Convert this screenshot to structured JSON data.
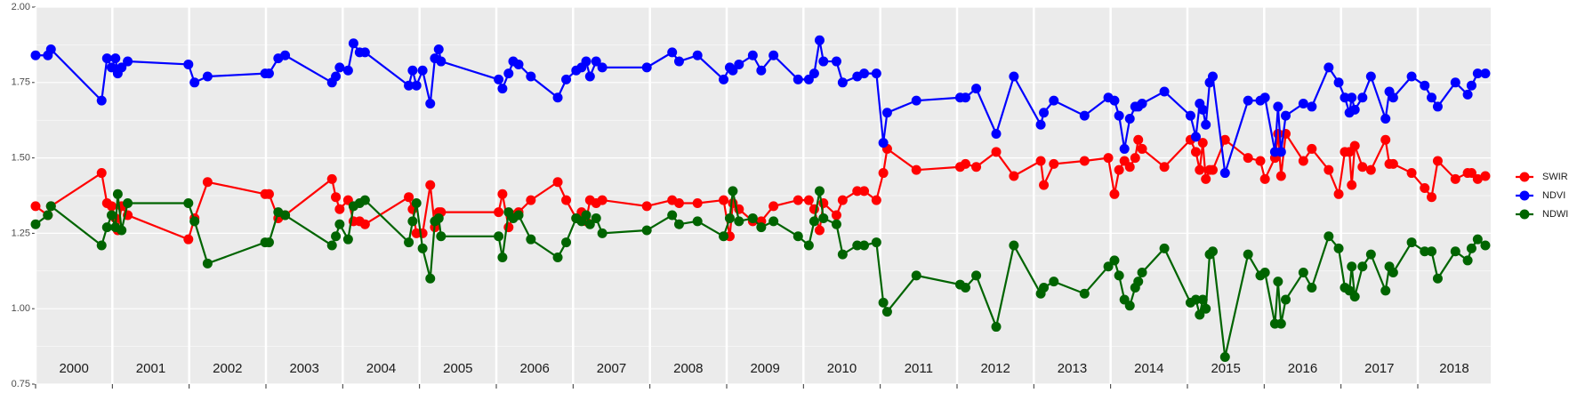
{
  "chart_data": {
    "type": "line",
    "x": [
      2000.0,
      2000.16,
      2000.2,
      2000.86,
      2000.93,
      2000.99,
      2001.04,
      2001.07,
      2001.12,
      2001.2,
      2001.99,
      2002.07,
      2002.24,
      2002.99,
      2003.04,
      2003.16,
      2003.25,
      2003.86,
      2003.91,
      2003.96,
      2004.07,
      2004.14,
      2004.22,
      2004.29,
      2004.86,
      2004.91,
      2004.96,
      2005.04,
      2005.14,
      2005.2,
      2005.25,
      2005.28,
      2006.03,
      2006.08,
      2006.16,
      2006.22,
      2006.29,
      2006.45,
      2006.8,
      2006.91,
      2007.04,
      2007.11,
      2007.17,
      2007.22,
      2007.3,
      2007.38,
      2007.96,
      2008.29,
      2008.38,
      2008.62,
      2008.96,
      2009.04,
      2009.08,
      2009.16,
      2009.34,
      2009.45,
      2009.61,
      2009.93,
      2010.07,
      2010.14,
      2010.21,
      2010.26,
      2010.43,
      2010.51,
      2010.7,
      2010.79,
      2010.95,
      2011.04,
      2011.09,
      2011.47,
      2012.04,
      2012.11,
      2012.25,
      2012.51,
      2012.74,
      2013.09,
      2013.13,
      2013.26,
      2013.66,
      2013.97,
      2014.05,
      2014.11,
      2014.18,
      2014.25,
      2014.32,
      2014.36,
      2014.41,
      2014.7,
      2015.04,
      2015.11,
      2015.16,
      2015.2,
      2015.24,
      2015.29,
      2015.33,
      2015.49,
      2015.79,
      2015.95,
      2016.01,
      2016.14,
      2016.18,
      2016.22,
      2016.28,
      2016.51,
      2016.62,
      2016.84,
      2016.97,
      2017.05,
      2017.11,
      2017.14,
      2017.18,
      2017.28,
      2017.39,
      2017.58,
      2017.63,
      2017.68,
      2017.92,
      2018.09,
      2018.18,
      2018.26,
      2018.49,
      2018.65,
      2018.7,
      2018.78,
      2018.88
    ],
    "series": [
      {
        "name": "SWIR",
        "color": "#ff0000",
        "values": [
          1.34,
          1.31,
          1.34,
          1.45,
          1.35,
          1.34,
          1.3,
          1.26,
          1.34,
          1.31,
          1.23,
          1.3,
          1.42,
          1.38,
          1.38,
          1.3,
          1.31,
          1.43,
          1.37,
          1.33,
          1.36,
          1.29,
          1.29,
          1.28,
          1.37,
          1.33,
          1.25,
          1.25,
          1.41,
          1.27,
          1.32,
          1.32,
          1.32,
          1.38,
          1.27,
          1.31,
          1.32,
          1.36,
          1.42,
          1.36,
          1.3,
          1.32,
          1.29,
          1.36,
          1.35,
          1.36,
          1.34,
          1.36,
          1.35,
          1.35,
          1.36,
          1.24,
          1.35,
          1.33,
          1.29,
          1.29,
          1.34,
          1.36,
          1.36,
          1.33,
          1.26,
          1.35,
          1.31,
          1.36,
          1.39,
          1.39,
          1.36,
          1.45,
          1.53,
          1.46,
          1.47,
          1.48,
          1.47,
          1.52,
          1.44,
          1.49,
          1.41,
          1.48,
          1.49,
          1.5,
          1.38,
          1.46,
          1.49,
          1.47,
          1.5,
          1.56,
          1.53,
          1.47,
          1.56,
          1.52,
          1.46,
          1.55,
          1.43,
          1.46,
          1.46,
          1.56,
          1.5,
          1.49,
          1.43,
          1.5,
          1.58,
          1.44,
          1.58,
          1.49,
          1.53,
          1.46,
          1.38,
          1.52,
          1.52,
          1.41,
          1.54,
          1.47,
          1.46,
          1.56,
          1.48,
          1.48,
          1.45,
          1.4,
          1.37,
          1.49,
          1.43,
          1.45,
          1.45,
          1.43,
          1.44
        ]
      },
      {
        "name": "NDVI",
        "color": "#0000ff",
        "values": [
          1.84,
          1.84,
          1.86,
          1.69,
          1.83,
          1.8,
          1.83,
          1.78,
          1.8,
          1.82,
          1.81,
          1.75,
          1.77,
          1.78,
          1.78,
          1.83,
          1.84,
          1.75,
          1.77,
          1.8,
          1.79,
          1.88,
          1.85,
          1.85,
          1.74,
          1.79,
          1.74,
          1.79,
          1.68,
          1.83,
          1.86,
          1.82,
          1.76,
          1.73,
          1.78,
          1.82,
          1.81,
          1.77,
          1.7,
          1.76,
          1.79,
          1.8,
          1.82,
          1.77,
          1.82,
          1.8,
          1.8,
          1.85,
          1.82,
          1.84,
          1.76,
          1.8,
          1.79,
          1.81,
          1.84,
          1.79,
          1.84,
          1.76,
          1.76,
          1.78,
          1.89,
          1.82,
          1.82,
          1.75,
          1.77,
          1.78,
          1.78,
          1.55,
          1.65,
          1.69,
          1.7,
          1.7,
          1.73,
          1.58,
          1.77,
          1.61,
          1.65,
          1.69,
          1.64,
          1.7,
          1.69,
          1.64,
          1.53,
          1.63,
          1.67,
          1.67,
          1.68,
          1.72,
          1.64,
          1.57,
          1.68,
          1.66,
          1.61,
          1.75,
          1.77,
          1.45,
          1.69,
          1.69,
          1.7,
          1.52,
          1.67,
          1.52,
          1.64,
          1.68,
          1.67,
          1.8,
          1.75,
          1.7,
          1.65,
          1.7,
          1.66,
          1.7,
          1.77,
          1.63,
          1.72,
          1.7,
          1.77,
          1.74,
          1.7,
          1.67,
          1.75,
          1.71,
          1.74,
          1.78,
          1.78
        ]
      },
      {
        "name": "NDWI",
        "color": "#006400",
        "values": [
          1.28,
          1.31,
          1.34,
          1.21,
          1.27,
          1.31,
          1.27,
          1.38,
          1.26,
          1.35,
          1.35,
          1.29,
          1.15,
          1.22,
          1.22,
          1.32,
          1.31,
          1.21,
          1.24,
          1.28,
          1.23,
          1.34,
          1.35,
          1.36,
          1.22,
          1.29,
          1.35,
          1.2,
          1.1,
          1.29,
          1.3,
          1.24,
          1.24,
          1.17,
          1.32,
          1.3,
          1.31,
          1.23,
          1.17,
          1.22,
          1.3,
          1.29,
          1.31,
          1.28,
          1.3,
          1.25,
          1.26,
          1.31,
          1.28,
          1.29,
          1.24,
          1.3,
          1.39,
          1.29,
          1.3,
          1.27,
          1.29,
          1.24,
          1.21,
          1.29,
          1.39,
          1.3,
          1.28,
          1.18,
          1.21,
          1.21,
          1.22,
          1.02,
          0.99,
          1.11,
          1.08,
          1.07,
          1.11,
          0.94,
          1.21,
          1.05,
          1.07,
          1.09,
          1.05,
          1.14,
          1.16,
          1.11,
          1.03,
          1.01,
          1.07,
          1.09,
          1.12,
          1.2,
          1.02,
          1.03,
          0.98,
          1.03,
          1.0,
          1.18,
          1.19,
          0.84,
          1.18,
          1.11,
          1.12,
          0.95,
          1.09,
          0.95,
          1.03,
          1.12,
          1.07,
          1.24,
          1.2,
          1.07,
          1.06,
          1.14,
          1.04,
          1.14,
          1.18,
          1.06,
          1.14,
          1.12,
          1.22,
          1.19,
          1.19,
          1.1,
          1.19,
          1.16,
          1.2,
          1.23,
          1.21
        ]
      }
    ],
    "xlim": [
      2000,
      2018.95
    ],
    "ylim": [
      0.75,
      2.0
    ],
    "xticks": [
      {
        "value": 2000,
        "label": "2000"
      },
      {
        "value": 2001,
        "label": "2001"
      },
      {
        "value": 2002,
        "label": "2002"
      },
      {
        "value": 2003,
        "label": "2003"
      },
      {
        "value": 2004,
        "label": "2004"
      },
      {
        "value": 2005,
        "label": "2005"
      },
      {
        "value": 2006,
        "label": "2006"
      },
      {
        "value": 2007,
        "label": "2007"
      },
      {
        "value": 2008,
        "label": "2008"
      },
      {
        "value": 2009,
        "label": "2009"
      },
      {
        "value": 2010,
        "label": "2010"
      },
      {
        "value": 2011,
        "label": "2011"
      },
      {
        "value": 2012,
        "label": "2012"
      },
      {
        "value": 2013,
        "label": "2013"
      },
      {
        "value": 2014,
        "label": "2014"
      },
      {
        "value": 2015,
        "label": "2015"
      },
      {
        "value": 2016,
        "label": "2016"
      },
      {
        "value": 2017,
        "label": "2017"
      },
      {
        "value": 2018,
        "label": "2018"
      }
    ],
    "yticks": [
      {
        "value": 0.75,
        "label": "0.75"
      },
      {
        "value": 1.0,
        "label": "1.00"
      },
      {
        "value": 1.25,
        "label": "1.25"
      },
      {
        "value": 1.5,
        "label": "1.50"
      },
      {
        "value": 1.75,
        "label": "1.75"
      },
      {
        "value": 2.0,
        "label": "2.00"
      }
    ],
    "grid": true,
    "legend": "right"
  }
}
